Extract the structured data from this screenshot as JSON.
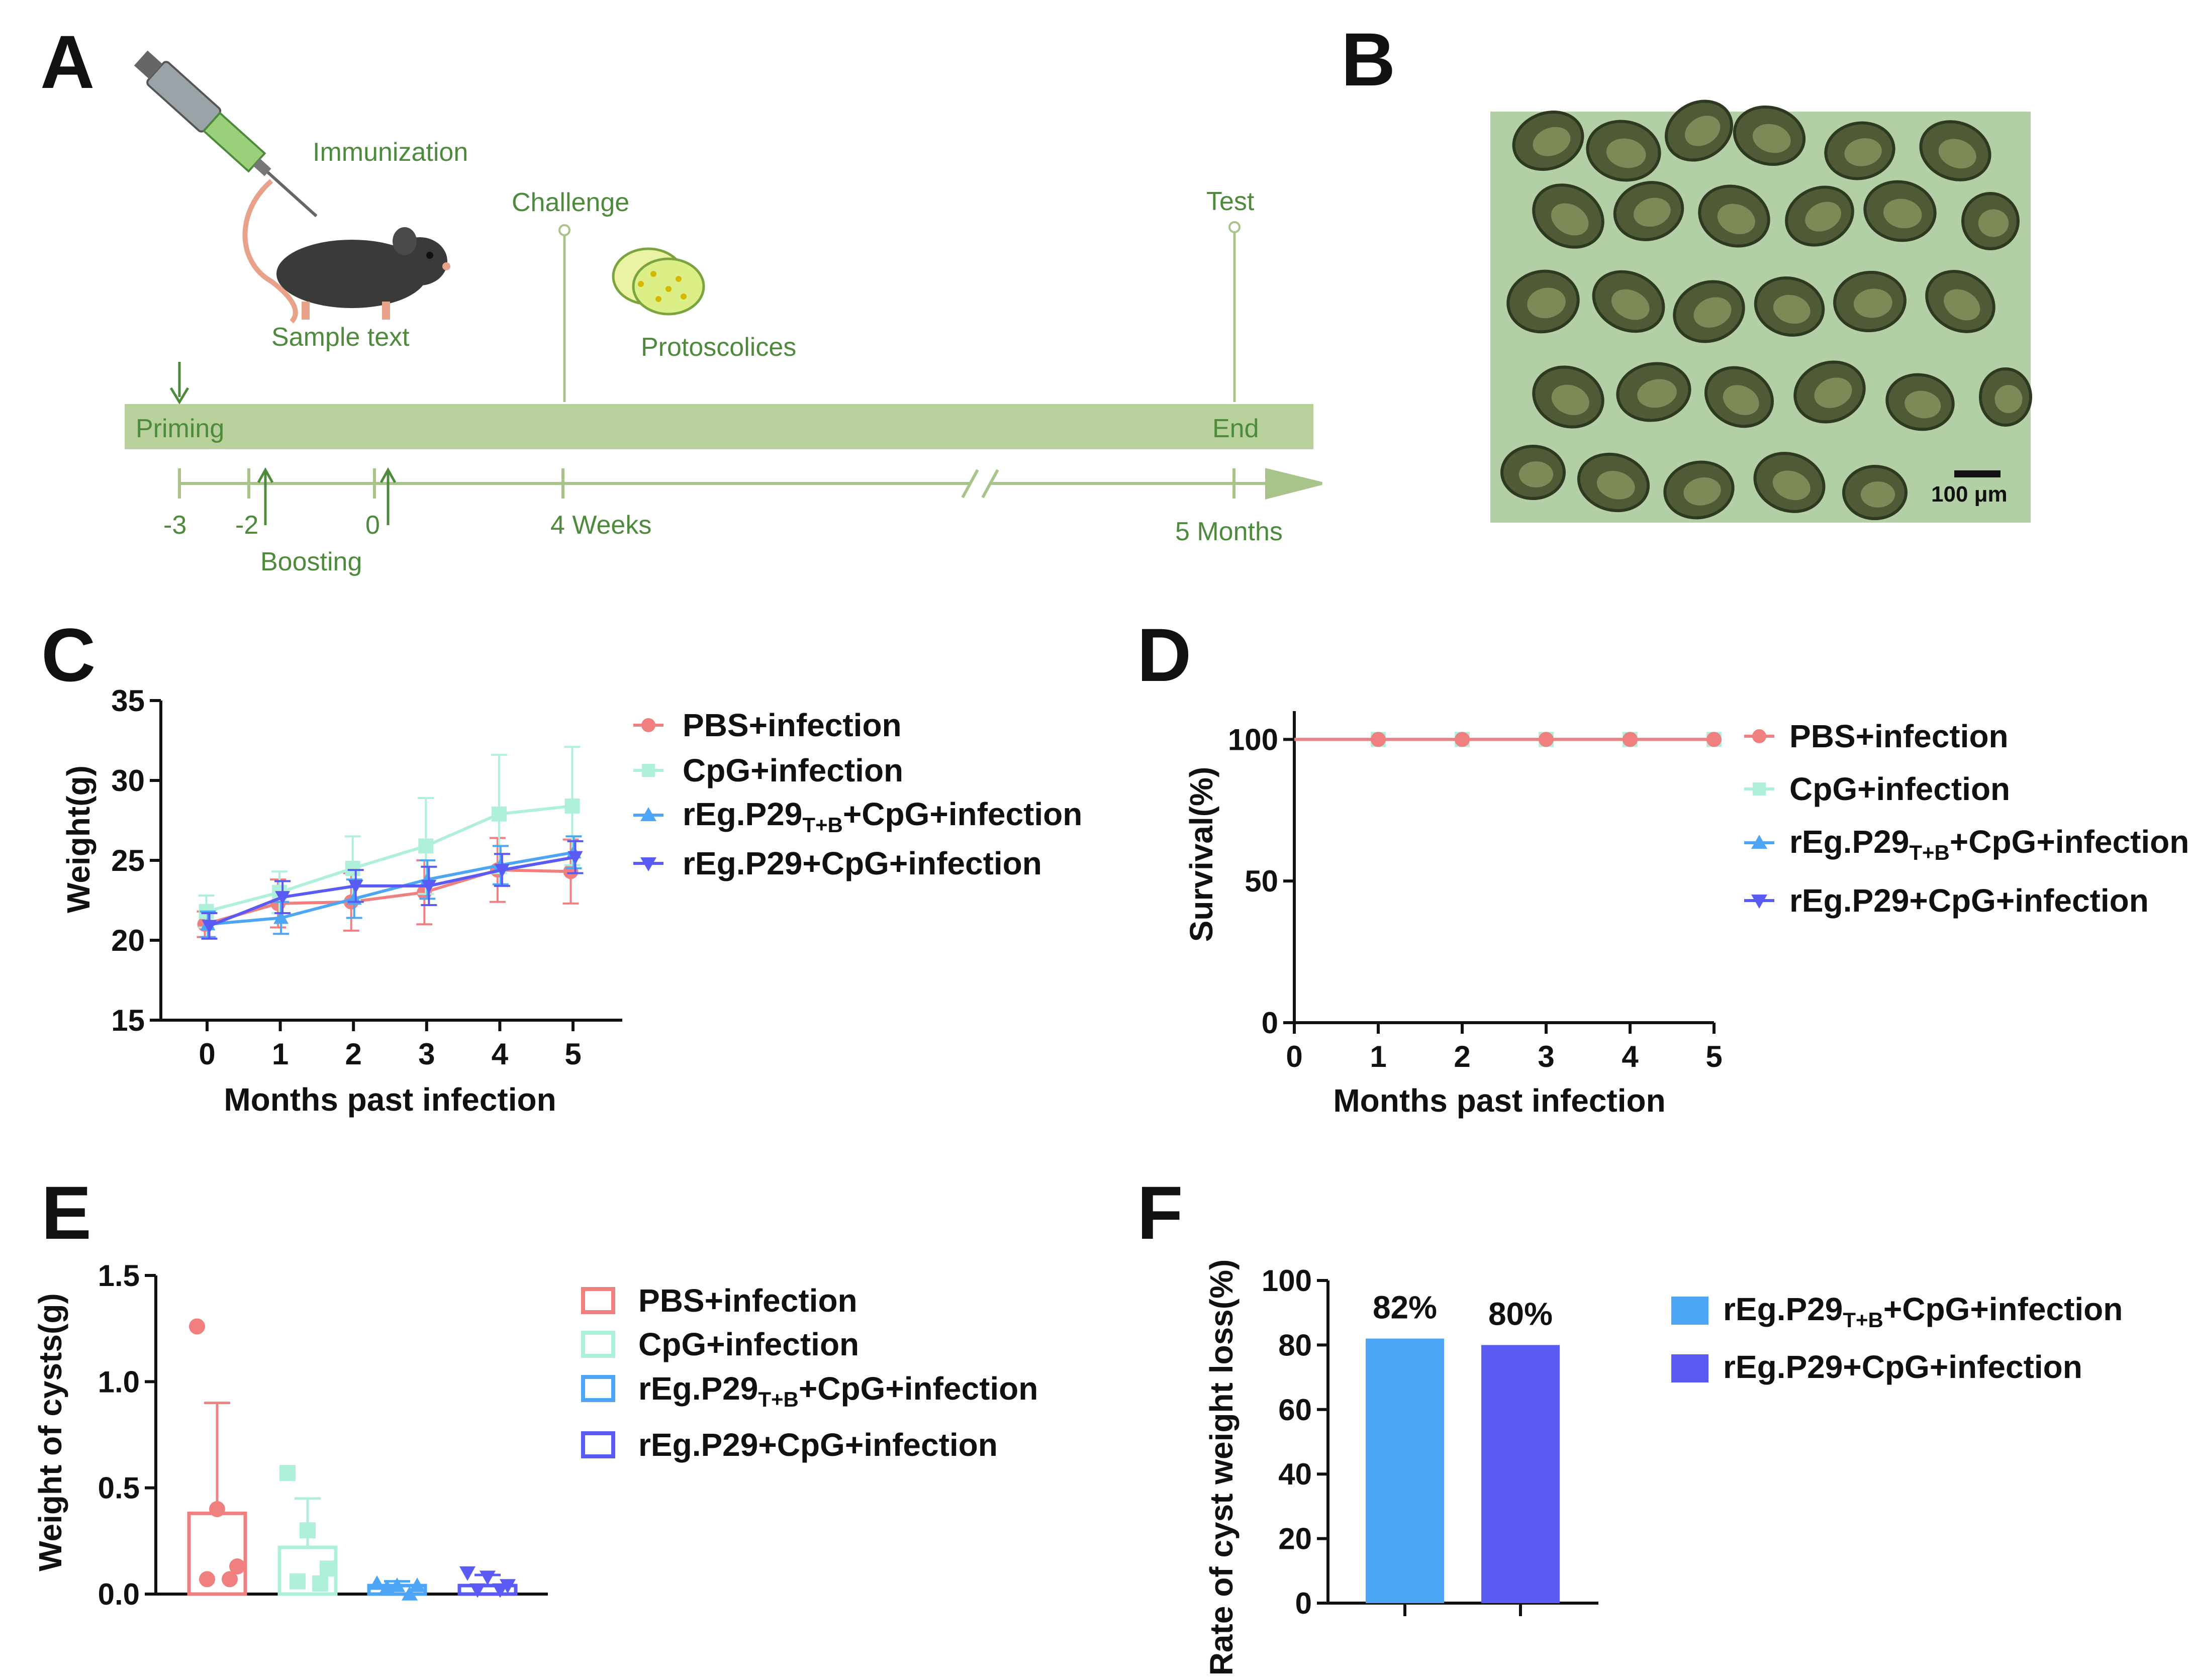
{
  "panels": [
    "A",
    "B",
    "C",
    "D",
    "E",
    "F"
  ],
  "timeline": {
    "immunization": "Immunization",
    "challenge": "Challenge",
    "test": "Test",
    "sample": "Sample text",
    "protoscolices": "Protoscolices",
    "priming": "Priming",
    "end": "End",
    "boosting": "Boosting",
    "ticks": [
      "-3",
      "-2",
      "0",
      "4 Weeks",
      "5 Months"
    ],
    "colors": {
      "text": "#4e8a3c",
      "bar": "#b8d09c",
      "line": "#a9c48a"
    }
  },
  "micrograph": {
    "scale": "100 μm",
    "background": "#b3cfa6"
  },
  "legend": {
    "pbs": "PBS+infection",
    "cpg": "CpG+infection",
    "tb_main": "rEg.P29",
    "tb_sub": "T+B",
    "tb_rest": "+CpG+infection",
    "p29": "rEg.P29+CpG+infection"
  },
  "colors": {
    "pbs": "#f08080",
    "cpg": "#aef0dc",
    "tb": "#4da6f5",
    "p29": "#5a5af5"
  },
  "chart_data": [
    {
      "panel": "C",
      "type": "line",
      "xlabel": "Months past infection",
      "ylabel": "Weight(g)",
      "x": [
        0,
        1,
        2,
        3,
        4,
        5
      ],
      "xticks": [
        "0",
        "1",
        "2",
        "3",
        "4",
        "5"
      ],
      "yticks": [
        "15",
        "20",
        "25",
        "30",
        "35"
      ],
      "ylim": [
        15,
        35
      ],
      "series": [
        {
          "name": "PBS+infection",
          "values": [
            21.0,
            22.3,
            22.4,
            23.0,
            24.4,
            24.3
          ],
          "err": [
            0.8,
            1.5,
            1.8,
            2.0,
            2.0,
            2.0
          ]
        },
        {
          "name": "CpG+infection",
          "values": [
            21.8,
            23.0,
            24.5,
            25.9,
            27.9,
            28.4
          ],
          "err": [
            1.0,
            1.3,
            2.0,
            3.0,
            3.7,
            3.7
          ]
        },
        {
          "name": "rEg.P29T+B+CpG+infection",
          "values": [
            21.0,
            21.4,
            22.6,
            23.8,
            24.7,
            25.5
          ],
          "err": [
            0.8,
            1.0,
            1.2,
            1.2,
            1.2,
            1.0
          ]
        },
        {
          "name": "rEg.P29+CpG+infection",
          "values": [
            20.9,
            22.7,
            23.4,
            23.4,
            24.4,
            25.2
          ],
          "err": [
            0.8,
            1.0,
            1.0,
            1.2,
            1.0,
            1.0
          ]
        }
      ]
    },
    {
      "panel": "D",
      "type": "line",
      "xlabel": "Months past infection",
      "ylabel": "Survival(%)",
      "x": [
        0,
        1,
        2,
        3,
        4,
        5
      ],
      "xticks": [
        "0",
        "1",
        "2",
        "3",
        "4",
        "5"
      ],
      "yticks": [
        "0",
        "50",
        "100"
      ],
      "ylim": [
        0,
        110
      ],
      "series": [
        {
          "name": "PBS+infection",
          "values": [
            100,
            100,
            100,
            100,
            100,
            100
          ]
        },
        {
          "name": "CpG+infection",
          "values": [
            100,
            100,
            100,
            100,
            100,
            100
          ]
        },
        {
          "name": "rEg.P29T+B+CpG+infection",
          "values": [
            100,
            100,
            100,
            100,
            100,
            100
          ]
        },
        {
          "name": "rEg.P29+CpG+infection",
          "values": [
            100,
            100,
            100,
            100,
            100,
            100
          ]
        }
      ]
    },
    {
      "panel": "E",
      "type": "bar",
      "ylabel": "Weight of cysts(g)",
      "categories": [
        "PBS+infection",
        "CpG+infection",
        "rEg.P29T+B+CpG+infection",
        "rEg.P29+CpG+infection"
      ],
      "values": [
        0.38,
        0.22,
        0.04,
        0.04
      ],
      "err": [
        0.52,
        0.23,
        0.02,
        0.05
      ],
      "points": [
        [
          1.26,
          0.4,
          0.13,
          0.07,
          0.07
        ],
        [
          0.57,
          0.3,
          0.12,
          0.06,
          0.05
        ],
        [
          0.05,
          0.04,
          0.04,
          0.03,
          0.0
        ],
        [
          0.1,
          0.08,
          0.04,
          0.02,
          0.02
        ]
      ],
      "yticks": [
        "0.0",
        "0.5",
        "1.0",
        "1.5"
      ],
      "ylim": [
        0,
        1.5
      ]
    },
    {
      "panel": "F",
      "type": "bar",
      "ylabel": "Rate of cyst weight loss(%)",
      "categories": [
        "rEg.P29T+B+CpG+infection",
        "rEg.P29+CpG+infection"
      ],
      "values": [
        82,
        80
      ],
      "data_labels": [
        "82%",
        "80%"
      ],
      "yticks": [
        "0",
        "20",
        "40",
        "60",
        "80",
        "100"
      ],
      "ylim": [
        0,
        100
      ]
    }
  ]
}
